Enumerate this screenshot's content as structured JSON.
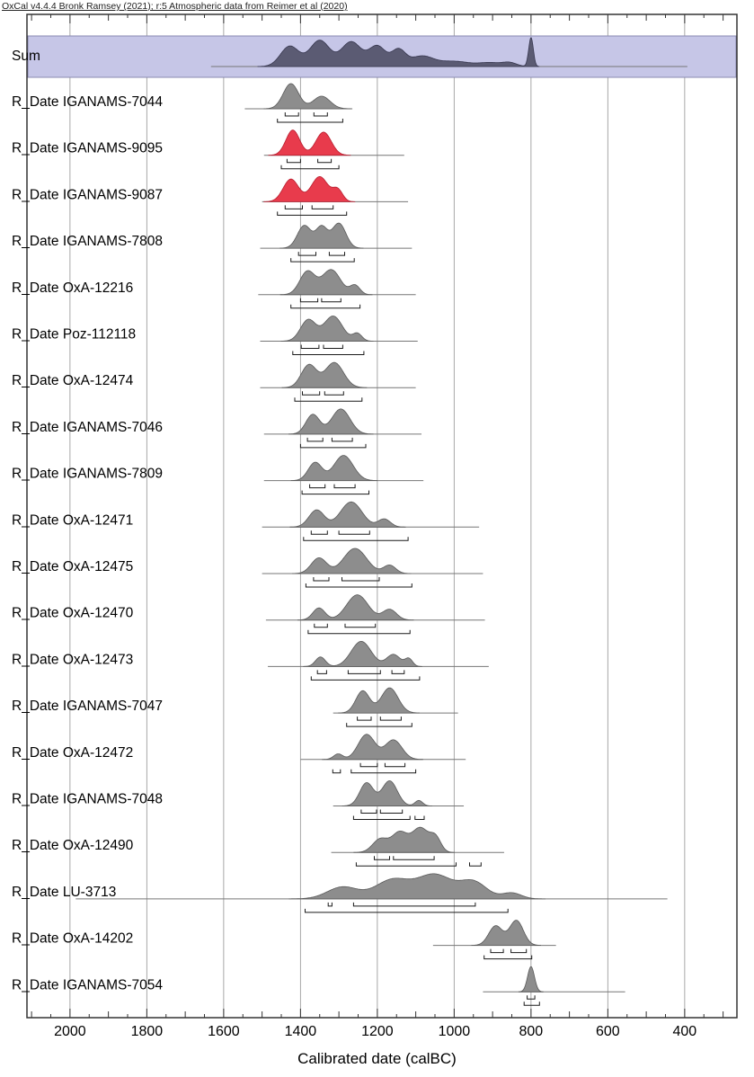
{
  "header": "OxCal v4.4.4 Bronk Ramsey (2021); r:5 Atmospheric data from Reimer et al (2020)",
  "xlabel": "Calibrated date (calBC)",
  "chart_data": {
    "type": "area",
    "title": "",
    "x_axis": {
      "label": "Calibrated date (calBC)",
      "unit": "calBC",
      "reversed": true,
      "ticks": [
        2000,
        1800,
        1600,
        1400,
        1200,
        1000,
        800,
        600,
        400
      ]
    },
    "x_range": [
      2112,
      264
    ],
    "grid": true,
    "colors": {
      "grey_fill": "#8d8d8d",
      "grey_stroke": "#595959",
      "red_fill": "#e83b4c",
      "red_stroke": "#b81f30",
      "sum_fill": "#5b5b73",
      "sum_stroke": "#37374f",
      "band": "#c6c6e7",
      "band_border": "#8a8ab0",
      "grid": "#9e9e9e",
      "frame": "#333333",
      "range_line": "#777777",
      "bracket": "#1a1a1a"
    },
    "sum": {
      "label": "Sum",
      "line": [
        1633,
        393
      ],
      "bumps": [
        [
          1428,
          24,
          0.7
        ],
        [
          1350,
          26,
          0.9
        ],
        [
          1268,
          26,
          0.85
        ],
        [
          1200,
          22,
          0.7
        ],
        [
          1145,
          18,
          0.55
        ],
        [
          1085,
          30,
          0.35
        ],
        [
          1000,
          40,
          0.18
        ],
        [
          905,
          30,
          0.13
        ],
        [
          855,
          18,
          0.12
        ],
        [
          800,
          6,
          1.0
        ]
      ]
    },
    "series": [
      {
        "label": "R_Date IGANAMS-7044",
        "color": "grey",
        "line": [
          1545,
          1265
        ],
        "bumps": [
          [
            1425,
            20,
            1
          ],
          [
            1345,
            22,
            0.5
          ]
        ],
        "r68": [
          [
            1440,
            1405
          ],
          [
            1365,
            1330
          ]
        ],
        "r95": [
          [
            1460,
            1290
          ]
        ]
      },
      {
        "label": "R_Date IGANAMS-9095",
        "color": "red",
        "line": [
          1495,
          1130
        ],
        "bumps": [
          [
            1420,
            18,
            1
          ],
          [
            1340,
            20,
            0.92
          ]
        ],
        "r68": [
          [
            1435,
            1400
          ],
          [
            1355,
            1320
          ]
        ],
        "r95": [
          [
            1450,
            1300
          ]
        ]
      },
      {
        "label": "R_Date IGANAMS-9087",
        "color": "red",
        "line": [
          1500,
          1120
        ],
        "bumps": [
          [
            1425,
            20,
            0.9
          ],
          [
            1350,
            22,
            1
          ],
          [
            1303,
            13,
            0.45
          ]
        ],
        "r68": [
          [
            1440,
            1395
          ],
          [
            1370,
            1315
          ]
        ],
        "r95": [
          [
            1460,
            1280
          ]
        ]
      },
      {
        "label": "R_Date IGANAMS-7808",
        "color": "grey",
        "line": [
          1505,
          1110
        ],
        "bumps": [
          [
            1390,
            18,
            0.82
          ],
          [
            1345,
            15,
            0.75
          ],
          [
            1300,
            18,
            0.9
          ]
        ],
        "r68": [
          [
            1405,
            1360
          ],
          [
            1325,
            1285
          ]
        ],
        "r95": [
          [
            1425,
            1260
          ]
        ]
      },
      {
        "label": "R_Date OxA-12216",
        "color": "grey",
        "line": [
          1510,
          1100
        ],
        "bumps": [
          [
            1382,
            20,
            0.88
          ],
          [
            1320,
            24,
            0.95
          ],
          [
            1258,
            13,
            0.35
          ]
        ],
        "r68": [
          [
            1400,
            1355
          ],
          [
            1345,
            1295
          ]
        ],
        "r95": [
          [
            1425,
            1245
          ]
        ]
      },
      {
        "label": "R_Date Poz-112118",
        "color": "grey",
        "line": [
          1505,
          1095
        ],
        "bumps": [
          [
            1380,
            20,
            0.85
          ],
          [
            1315,
            24,
            1
          ],
          [
            1252,
            12,
            0.3
          ]
        ],
        "r68": [
          [
            1398,
            1352
          ],
          [
            1340,
            1290
          ]
        ],
        "r95": [
          [
            1420,
            1235
          ]
        ]
      },
      {
        "label": "R_Date OxA-12474",
        "color": "grey",
        "line": [
          1505,
          1100
        ],
        "bumps": [
          [
            1378,
            20,
            0.88
          ],
          [
            1312,
            24,
            0.97
          ]
        ],
        "r68": [
          [
            1395,
            1350
          ],
          [
            1337,
            1288
          ]
        ],
        "r95": [
          [
            1415,
            1240
          ]
        ]
      },
      {
        "label": "R_Date IGANAMS-7046",
        "color": "grey",
        "line": [
          1495,
          1085
        ],
        "bumps": [
          [
            1368,
            18,
            0.78
          ],
          [
            1295,
            24,
            1
          ]
        ],
        "r68": [
          [
            1382,
            1342
          ],
          [
            1318,
            1265
          ]
        ],
        "r95": [
          [
            1400,
            1230
          ]
        ]
      },
      {
        "label": "R_Date IGANAMS-7809",
        "color": "grey",
        "line": [
          1495,
          1080
        ],
        "bumps": [
          [
            1362,
            18,
            0.72
          ],
          [
            1288,
            25,
            1
          ]
        ],
        "r68": [
          [
            1376,
            1336
          ],
          [
            1312,
            1258
          ]
        ],
        "r95": [
          [
            1396,
            1222
          ]
        ]
      },
      {
        "label": "R_Date OxA-12471",
        "color": "grey",
        "line": [
          1500,
          935
        ],
        "bumps": [
          [
            1358,
            20,
            0.68
          ],
          [
            1268,
            28,
            1
          ],
          [
            1182,
            16,
            0.32
          ]
        ],
        "r68": [
          [
            1372,
            1330
          ],
          [
            1300,
            1220
          ]
        ],
        "r95": [
          [
            1392,
            1120
          ]
        ]
      },
      {
        "label": "R_Date OxA-12475",
        "color": "grey",
        "line": [
          1500,
          925
        ],
        "bumps": [
          [
            1352,
            20,
            0.62
          ],
          [
            1258,
            30,
            1
          ],
          [
            1168,
            16,
            0.33
          ]
        ],
        "r68": [
          [
            1366,
            1326
          ],
          [
            1292,
            1195
          ]
        ],
        "r95": [
          [
            1386,
            1110
          ]
        ]
      },
      {
        "label": "R_Date OxA-12470",
        "color": "grey",
        "line": [
          1490,
          920
        ],
        "bumps": [
          [
            1352,
            16,
            0.48
          ],
          [
            1252,
            28,
            1
          ],
          [
            1168,
            18,
            0.42
          ]
        ],
        "r68": [
          [
            1364,
            1330
          ],
          [
            1284,
            1205
          ]
        ],
        "r95": [
          [
            1380,
            1115
          ]
        ]
      },
      {
        "label": "R_Date OxA-12473",
        "color": "grey",
        "line": [
          1485,
          910
        ],
        "bumps": [
          [
            1348,
            13,
            0.38
          ],
          [
            1242,
            26,
            1
          ],
          [
            1158,
            18,
            0.48
          ],
          [
            1118,
            10,
            0.3
          ]
        ],
        "r68": [
          [
            1356,
            1332
          ],
          [
            1276,
            1192
          ],
          [
            1162,
            1130
          ]
        ],
        "r95": [
          [
            1372,
            1090
          ]
        ]
      },
      {
        "label": "R_Date IGANAMS-7047",
        "color": "grey",
        "line": [
          1315,
          990
        ],
        "bumps": [
          [
            1238,
            18,
            0.88
          ],
          [
            1168,
            22,
            1
          ]
        ],
        "r68": [
          [
            1252,
            1216
          ],
          [
            1192,
            1138
          ]
        ],
        "r95": [
          [
            1280,
            1110
          ]
        ]
      },
      {
        "label": "R_Date OxA-12472",
        "color": "grey",
        "line": [
          1400,
          970
        ],
        "bumps": [
          [
            1302,
            12,
            0.22
          ],
          [
            1228,
            22,
            1
          ],
          [
            1158,
            22,
            0.78
          ]
        ],
        "r68": [
          [
            1244,
            1200
          ],
          [
            1180,
            1128
          ]
        ],
        "r95": [
          [
            1316,
            1296
          ],
          [
            1268,
            1100
          ]
        ]
      },
      {
        "label": "R_Date IGANAMS-7048",
        "color": "grey",
        "line": [
          1315,
          975
        ],
        "bumps": [
          [
            1228,
            18,
            0.92
          ],
          [
            1168,
            20,
            1
          ],
          [
            1092,
            10,
            0.22
          ]
        ],
        "r68": [
          [
            1242,
            1202
          ],
          [
            1192,
            1135
          ]
        ],
        "r95": [
          [
            1262,
            1115
          ],
          [
            1102,
            1078
          ]
        ]
      },
      {
        "label": "R_Date OxA-12490",
        "color": "grey",
        "line": [
          1320,
          870
        ],
        "bumps": [
          [
            1192,
            20,
            0.55
          ],
          [
            1142,
            20,
            0.8
          ],
          [
            1088,
            22,
            1
          ],
          [
            1048,
            14,
            0.55
          ]
        ],
        "r68": [
          [
            1208,
            1168
          ],
          [
            1158,
            1052
          ]
        ],
        "r95": [
          [
            1255,
            995
          ],
          [
            960,
            930
          ]
        ]
      },
      {
        "label": "R_Date LU-3713",
        "color": "grey",
        "line": [
          1985,
          445
        ],
        "bumps": [
          [
            1290,
            40,
            0.5
          ],
          [
            1160,
            45,
            0.8
          ],
          [
            1050,
            45,
            1
          ],
          [
            950,
            35,
            0.7
          ],
          [
            850,
            25,
            0.25
          ]
        ],
        "r68": [
          [
            1328,
            1318
          ],
          [
            1262,
            945
          ]
        ],
        "r95": [
          [
            1388,
            860
          ]
        ]
      },
      {
        "label": "R_Date OxA-14202",
        "color": "grey",
        "line": [
          1055,
          735
        ],
        "bumps": [
          [
            892,
            18,
            0.78
          ],
          [
            838,
            18,
            1
          ]
        ],
        "r68": [
          [
            905,
            872
          ],
          [
            852,
            812
          ]
        ],
        "r95": [
          [
            922,
            798
          ]
        ]
      },
      {
        "label": "R_Date IGANAMS-7054",
        "color": "grey",
        "line": [
          925,
          555
        ],
        "bumps": [
          [
            800,
            9,
            1
          ]
        ],
        "r68": [
          [
            810,
            790
          ]
        ],
        "r95": [
          [
            818,
            778
          ]
        ]
      }
    ]
  }
}
